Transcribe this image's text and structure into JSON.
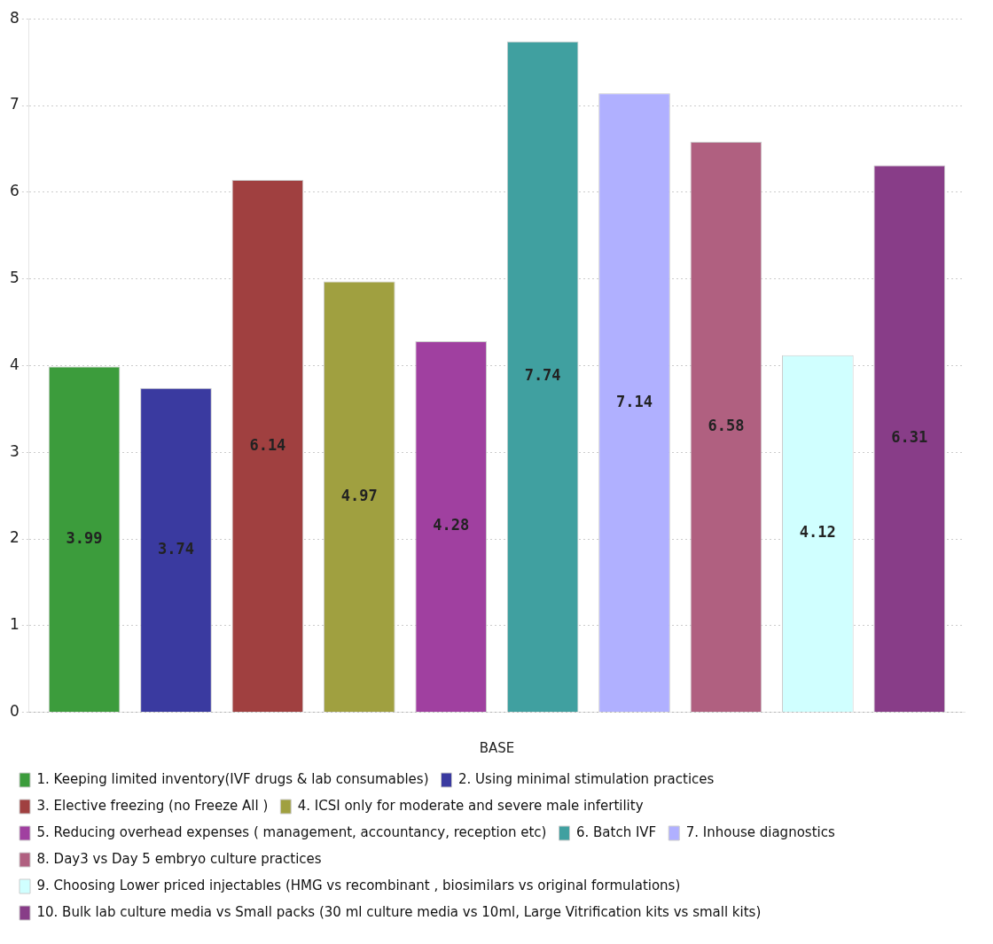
{
  "chart_data": {
    "type": "bar",
    "xlabel": "BASE",
    "categories": [
      null
    ],
    "series": [
      {
        "name": "1. Keeping limited inventory(IVF drugs & lab consumables)",
        "color": "#3c9c3c",
        "values": [
          3.99
        ]
      },
      {
        "name": "2. Using minimal stimulation practices",
        "color": "#3a3aa0",
        "values": [
          3.74
        ]
      },
      {
        "name": "3. Elective freezing (no Freeze All )",
        "color": "#a04040",
        "values": [
          6.14
        ]
      },
      {
        "name": "4. ICSI only for moderate and severe male infertility",
        "color": "#a0a040",
        "values": [
          4.97
        ]
      },
      {
        "name": "5. Reducing overhead expenses ( management, accountancy, reception etc)",
        "color": "#a040a0",
        "values": [
          4.28
        ]
      },
      {
        "name": "6. Batch IVF",
        "color": "#40a0a0",
        "values": [
          7.74
        ]
      },
      {
        "name": "7. Inhouse diagnostics",
        "color": "#b0b0ff",
        "values": [
          7.14
        ]
      },
      {
        "name": "8. Day3 vs Day 5 embryo culture practices",
        "color": "#b06080",
        "values": [
          6.58
        ]
      },
      {
        "name": "9. Choosing Lower priced injectables (HMG vs recombinant , biosimilars vs original formulations)",
        "color": "#d0ffff",
        "values": [
          4.12
        ]
      },
      {
        "name": "10. Bulk lab culture media vs Small packs (30 ml culture media vs 10ml, Large Vitrification kits vs small kits)",
        "color": "#883d88",
        "values": [
          6.31
        ]
      }
    ],
    "ylim": [
      0,
      8
    ],
    "yticks": [
      0,
      1,
      2,
      3,
      4,
      5,
      6,
      7,
      8
    ],
    "grid": "y",
    "legend": "bottom",
    "data_labels": true
  }
}
